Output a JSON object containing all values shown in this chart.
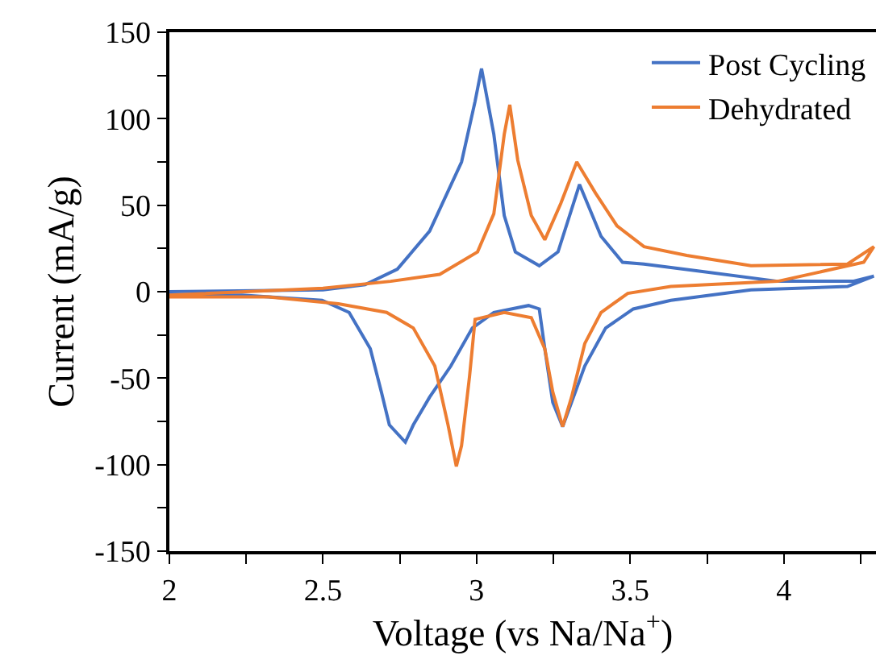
{
  "chart_data": {
    "type": "line",
    "xlabel": "Voltage (vs Na/Na$^{+}$)",
    "ylabel": "Current (mA/g)",
    "legend": "top right",
    "grid": false,
    "marker": "none",
    "line_style": "solid",
    "xlim": [
      2,
      4.3
    ],
    "xticks": [
      2,
      {
        "value": 2.25,
        "label": null
      },
      2.5,
      {
        "value": 2.75,
        "label": null
      },
      3,
      {
        "value": 3.25,
        "label": null
      },
      3.5,
      {
        "value": 3.75,
        "label": null
      },
      4,
      {
        "value": 4.25,
        "label": null
      }
    ],
    "ylim": [
      -150,
      150
    ],
    "yticks": [
      -150,
      {
        "value": -125,
        "label": null
      },
      -100,
      {
        "value": -75,
        "label": null
      },
      -50,
      {
        "value": -25,
        "label": null
      },
      0,
      {
        "value": 25,
        "label": null
      },
      50,
      {
        "value": 75,
        "label": null
      },
      100,
      {
        "value": 125,
        "label": null
      },
      150
    ],
    "series": [
      {
        "name": "Post Cycling",
        "color": "#4472c4",
        "x": [
          2,
          2.5,
          2.637,
          2.742,
          2.847,
          2.951,
          2.995,
          3.016,
          3.056,
          3.09,
          3.126,
          3.204,
          3.265,
          3.335,
          3.405,
          3.475,
          3.545,
          3.72,
          3.98,
          4.225,
          4.293,
          4.207,
          3.893,
          3.632,
          3.51,
          3.42,
          3.352,
          3.309,
          3.28,
          3.248,
          3.222,
          3.204,
          3.169,
          3.056,
          2.986,
          2.916,
          2.847,
          2.794,
          2.768,
          2.716,
          2.69,
          2.654,
          2.585,
          2.497,
          2.236,
          2
        ],
        "values": [
          0,
          1,
          4,
          13,
          35,
          75,
          110,
          129,
          91,
          44,
          23,
          15,
          23,
          62,
          32,
          17,
          16,
          12,
          6,
          6,
          9,
          3,
          1,
          -5,
          -10,
          -21,
          -43,
          -64,
          -78,
          -64,
          -33,
          -10,
          -8,
          -12,
          -21,
          -43,
          -61,
          -77,
          -87,
          -77,
          -58,
          -33,
          -12,
          -5,
          -2,
          -2
        ]
      },
      {
        "name": "Dehydrated",
        "color": "#ed7d31",
        "x": [
          2,
          2.5,
          2.72,
          2.88,
          3.003,
          3.056,
          3.09,
          3.108,
          3.134,
          3.178,
          3.222,
          3.274,
          3.326,
          3.387,
          3.457,
          3.545,
          3.684,
          3.893,
          4.207,
          4.293,
          4.26,
          3.98,
          3.632,
          3.492,
          3.405,
          3.352,
          3.309,
          3.28,
          3.248,
          3.222,
          3.178,
          3.09,
          2.995,
          2.977,
          2.951,
          2.934,
          2.907,
          2.864,
          2.794,
          2.707,
          2.55,
          2.323,
          2
        ],
        "values": [
          -2,
          2,
          6,
          10,
          23,
          45,
          91,
          108,
          76,
          44,
          30,
          51,
          75,
          57,
          38,
          26,
          21,
          15,
          16,
          26,
          17,
          6,
          3,
          -1,
          -12,
          -30,
          -61,
          -78,
          -58,
          -33,
          -15,
          -12,
          -16,
          -49,
          -89,
          -101,
          -77,
          -43,
          -21,
          -12,
          -7,
          -3,
          -3
        ]
      }
    ]
  }
}
